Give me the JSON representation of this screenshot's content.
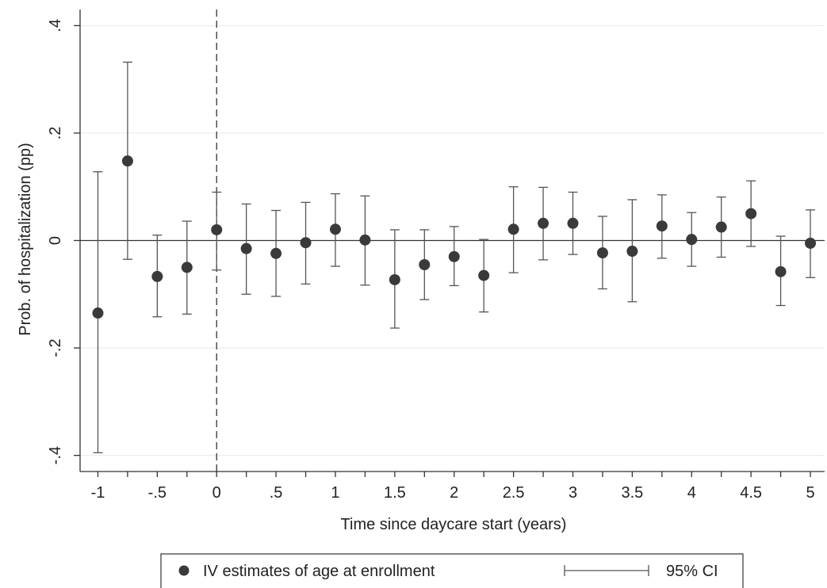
{
  "chart_data": {
    "type": "scatter",
    "xlabel": "Time since daycare start (years)",
    "ylabel": "Prob. of hospitalization (pp)",
    "xlim": [
      -1.15,
      5.12
    ],
    "ylim": [
      -0.43,
      0.43
    ],
    "x_ticks": [
      -1,
      -0.75,
      -0.5,
      -0.25,
      0,
      0.25,
      0.5,
      0.75,
      1,
      1.25,
      1.5,
      1.75,
      2,
      2.25,
      2.5,
      2.75,
      3,
      3.25,
      3.5,
      3.75,
      4,
      4.25,
      4.5,
      4.75,
      5
    ],
    "x_tick_labels": [
      "-1",
      "-.5",
      "0",
      ".5",
      "1",
      "1.5",
      "2",
      "2.5",
      "3",
      "3.5",
      "4",
      "4.5",
      "5"
    ],
    "x_tick_label_values": [
      -1,
      -0.5,
      0,
      0.5,
      1,
      1.5,
      2,
      2.5,
      3,
      3.5,
      4,
      4.5,
      5
    ],
    "y_ticks": [
      -0.4,
      -0.2,
      0,
      0.2,
      0.4
    ],
    "y_tick_labels": [
      "-.4",
      "-.2",
      "0",
      ".2",
      ".4"
    ],
    "grid": "horizontal",
    "reference_lines": {
      "horizontal_y": 0,
      "vertical_dashed_x": 0
    },
    "series": [
      {
        "name": "IV estimates of age at enrollment",
        "x": [
          -1,
          -0.75,
          -0.5,
          -0.25,
          0,
          0.25,
          0.5,
          0.75,
          1,
          1.25,
          1.5,
          1.75,
          2,
          2.25,
          2.5,
          2.75,
          3,
          3.25,
          3.5,
          3.75,
          4,
          4.25,
          4.5,
          4.75,
          5
        ],
        "y": [
          -0.135,
          0.148,
          -0.067,
          -0.05,
          0.02,
          -0.015,
          -0.024,
          -0.004,
          0.021,
          0.001,
          -0.073,
          -0.045,
          -0.03,
          -0.065,
          0.021,
          0.032,
          0.032,
          -0.023,
          -0.02,
          0.027,
          0.002,
          0.025,
          0.05,
          -0.058,
          -0.005
        ],
        "ci_low": [
          -0.395,
          -0.035,
          -0.142,
          -0.137,
          -0.055,
          -0.1,
          -0.104,
          -0.081,
          -0.048,
          -0.083,
          -0.163,
          -0.11,
          -0.084,
          -0.133,
          -0.06,
          -0.036,
          -0.026,
          -0.09,
          -0.114,
          -0.033,
          -0.048,
          -0.031,
          -0.011,
          -0.121,
          -0.069
        ],
        "ci_high": [
          0.128,
          0.332,
          0.01,
          0.036,
          0.09,
          0.068,
          0.056,
          0.071,
          0.087,
          0.083,
          0.02,
          0.02,
          0.026,
          0.002,
          0.1,
          0.099,
          0.09,
          0.045,
          0.076,
          0.085,
          0.052,
          0.081,
          0.111,
          0.008,
          0.057
        ]
      }
    ],
    "legend": {
      "placement": "bottom",
      "items": [
        "IV estimates of age at enrollment",
        "95% CI"
      ]
    }
  },
  "colors": {
    "marker": "#3a3a3a",
    "errorbar": "#555555",
    "axis": "#333333",
    "grid": "#e8e8e8",
    "background": "#ffffff"
  }
}
